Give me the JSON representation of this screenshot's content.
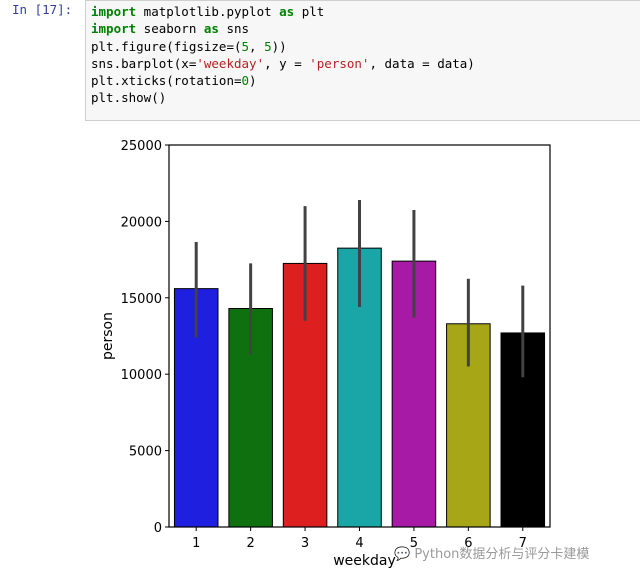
{
  "cell": {
    "prompt": "In [17]:",
    "lines": [
      [
        {
          "t": "kw",
          "v": "import"
        },
        {
          "t": "tok",
          "v": " matplotlib.pyplot "
        },
        {
          "t": "kw",
          "v": "as"
        },
        {
          "t": "tok",
          "v": " plt"
        }
      ],
      [
        {
          "t": "kw",
          "v": "import"
        },
        {
          "t": "tok",
          "v": " seaborn "
        },
        {
          "t": "kw",
          "v": "as"
        },
        {
          "t": "tok",
          "v": " sns"
        }
      ],
      [
        {
          "t": "tok",
          "v": "plt.figure(figsize=("
        },
        {
          "t": "num",
          "v": "5"
        },
        {
          "t": "tok",
          "v": ", "
        },
        {
          "t": "num",
          "v": "5"
        },
        {
          "t": "tok",
          "v": "))"
        }
      ],
      [
        {
          "t": "tok",
          "v": "sns.barplot(x="
        },
        {
          "t": "str",
          "v": "'weekday'"
        },
        {
          "t": "tok",
          "v": ", y = "
        },
        {
          "t": "str",
          "v": "'person'"
        },
        {
          "t": "tok",
          "v": ", data = data)"
        }
      ],
      [
        {
          "t": "tok",
          "v": "plt.xticks(rotation="
        },
        {
          "t": "num",
          "v": "0"
        },
        {
          "t": "tok",
          "v": ")"
        }
      ],
      [
        {
          "t": "tok",
          "v": "plt.show()"
        }
      ]
    ]
  },
  "chart_data": {
    "type": "bar",
    "categories": [
      "1",
      "2",
      "3",
      "4",
      "5",
      "6",
      "7"
    ],
    "values": [
      15600,
      14300,
      17250,
      18250,
      17400,
      13300,
      12700
    ],
    "error_low": [
      12400,
      11300,
      13500,
      14400,
      13700,
      10500,
      9800
    ],
    "error_high": [
      18650,
      17250,
      21000,
      21400,
      20750,
      16250,
      15800
    ],
    "colors": [
      "#1f1fe0",
      "#0f700f",
      "#dd1f1f",
      "#1aa6a6",
      "#a61aa6",
      "#a6a616",
      "#000000"
    ],
    "xlabel": "weekday",
    "ylabel": "person",
    "ylim": [
      0,
      25000
    ],
    "yticks": [
      0,
      5000,
      10000,
      15000,
      20000,
      25000
    ],
    "grid": false,
    "error_color": "#424242"
  },
  "watermark": "Python数据分析与评分卡建模"
}
